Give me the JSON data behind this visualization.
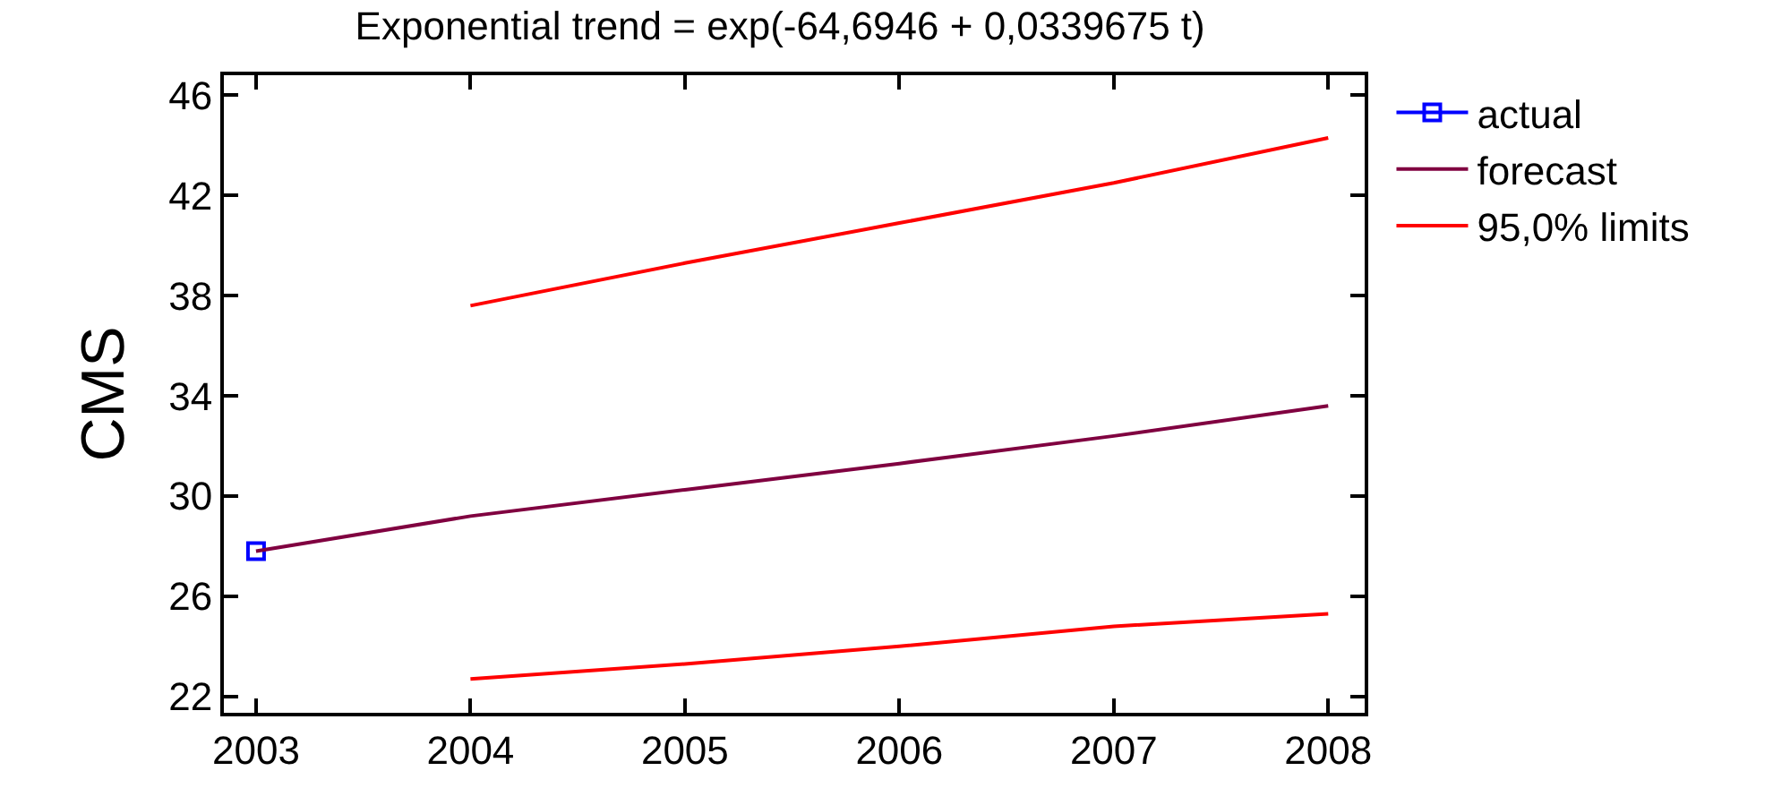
{
  "chart_data": {
    "type": "line",
    "title": "Exponential trend = exp(-64,6946 + 0,0339675 t)",
    "ylabel": "CMS",
    "x": [
      2003,
      2004,
      2005,
      2006,
      2007,
      2008
    ],
    "series": [
      {
        "name": "actual",
        "color": "#0000ff",
        "marker": "square",
        "x": [
          2003
        ],
        "values": [
          27.8
        ]
      },
      {
        "name": "forecast",
        "color": "#800040",
        "marker": "none",
        "values": [
          27.8,
          29.2,
          30.25,
          31.3,
          32.4,
          33.6
        ]
      },
      {
        "name": "95,0% limits",
        "color": "#ff0000",
        "marker": "none",
        "values": [
          null,
          37.6,
          39.3,
          40.9,
          42.5,
          44.3
        ]
      },
      {
        "color": "#ff0000",
        "marker": "none",
        "values": [
          null,
          22.7,
          23.3,
          24.0,
          24.8,
          25.3
        ]
      }
    ],
    "xlim": [
      2002.85,
      2008.17
    ],
    "xticks": [
      2003,
      2004,
      2005,
      2006,
      2007,
      2008
    ],
    "ylim": [
      21.35,
      46.8
    ],
    "yticks": [
      22,
      26,
      30,
      34,
      38,
      42,
      46
    ],
    "grid": false,
    "legend": "top right",
    "line_style": "solid"
  }
}
